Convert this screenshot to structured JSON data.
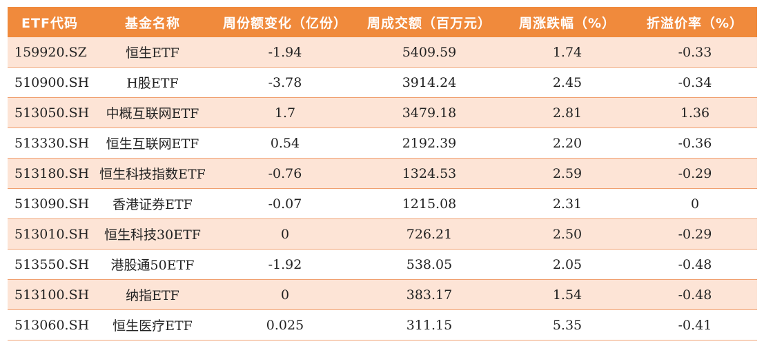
{
  "table": {
    "headers": [
      "ETF代码",
      "基金名称",
      "周份额变化（亿份）",
      "周成交额（百万元）",
      "周涨跌幅（%）",
      "折溢价率（%）"
    ],
    "rows": [
      [
        "159920.SZ",
        "恒生ETF",
        "-1.94",
        "5409.59",
        "1.74",
        "-0.33"
      ],
      [
        "510900.SH",
        "H股ETF",
        "-3.78",
        "3914.24",
        "2.45",
        "-0.34"
      ],
      [
        "513050.SH",
        "中概互联网ETF",
        "1.7",
        "3479.18",
        "2.81",
        "1.36"
      ],
      [
        "513330.SH",
        "恒生互联网ETF",
        "0.54",
        "2192.39",
        "2.20",
        "-0.36"
      ],
      [
        "513180.SH",
        "恒生科技指数ETF",
        "-0.76",
        "1324.53",
        "2.59",
        "-0.29"
      ],
      [
        "513090.SH",
        "香港证券ETF",
        "-0.07",
        "1215.08",
        "2.31",
        "0"
      ],
      [
        "513010.SH",
        "恒生科技30ETF",
        "0",
        "726.21",
        "2.50",
        "-0.29"
      ],
      [
        "513550.SH",
        "港股通50ETF",
        "-1.92",
        "538.05",
        "2.05",
        "-0.48"
      ],
      [
        "513100.SH",
        "纳指ETF",
        "0",
        "383.17",
        "1.54",
        "-0.48"
      ],
      [
        "513060.SH",
        "恒生医疗ETF",
        "0.025",
        "311.15",
        "5.35",
        "-0.41"
      ]
    ]
  },
  "colors": {
    "header_bg": "#f08a3c",
    "header_text": "#ffffff",
    "stripe_bg": "#fde4d6",
    "row_divider": "#f0a070"
  }
}
